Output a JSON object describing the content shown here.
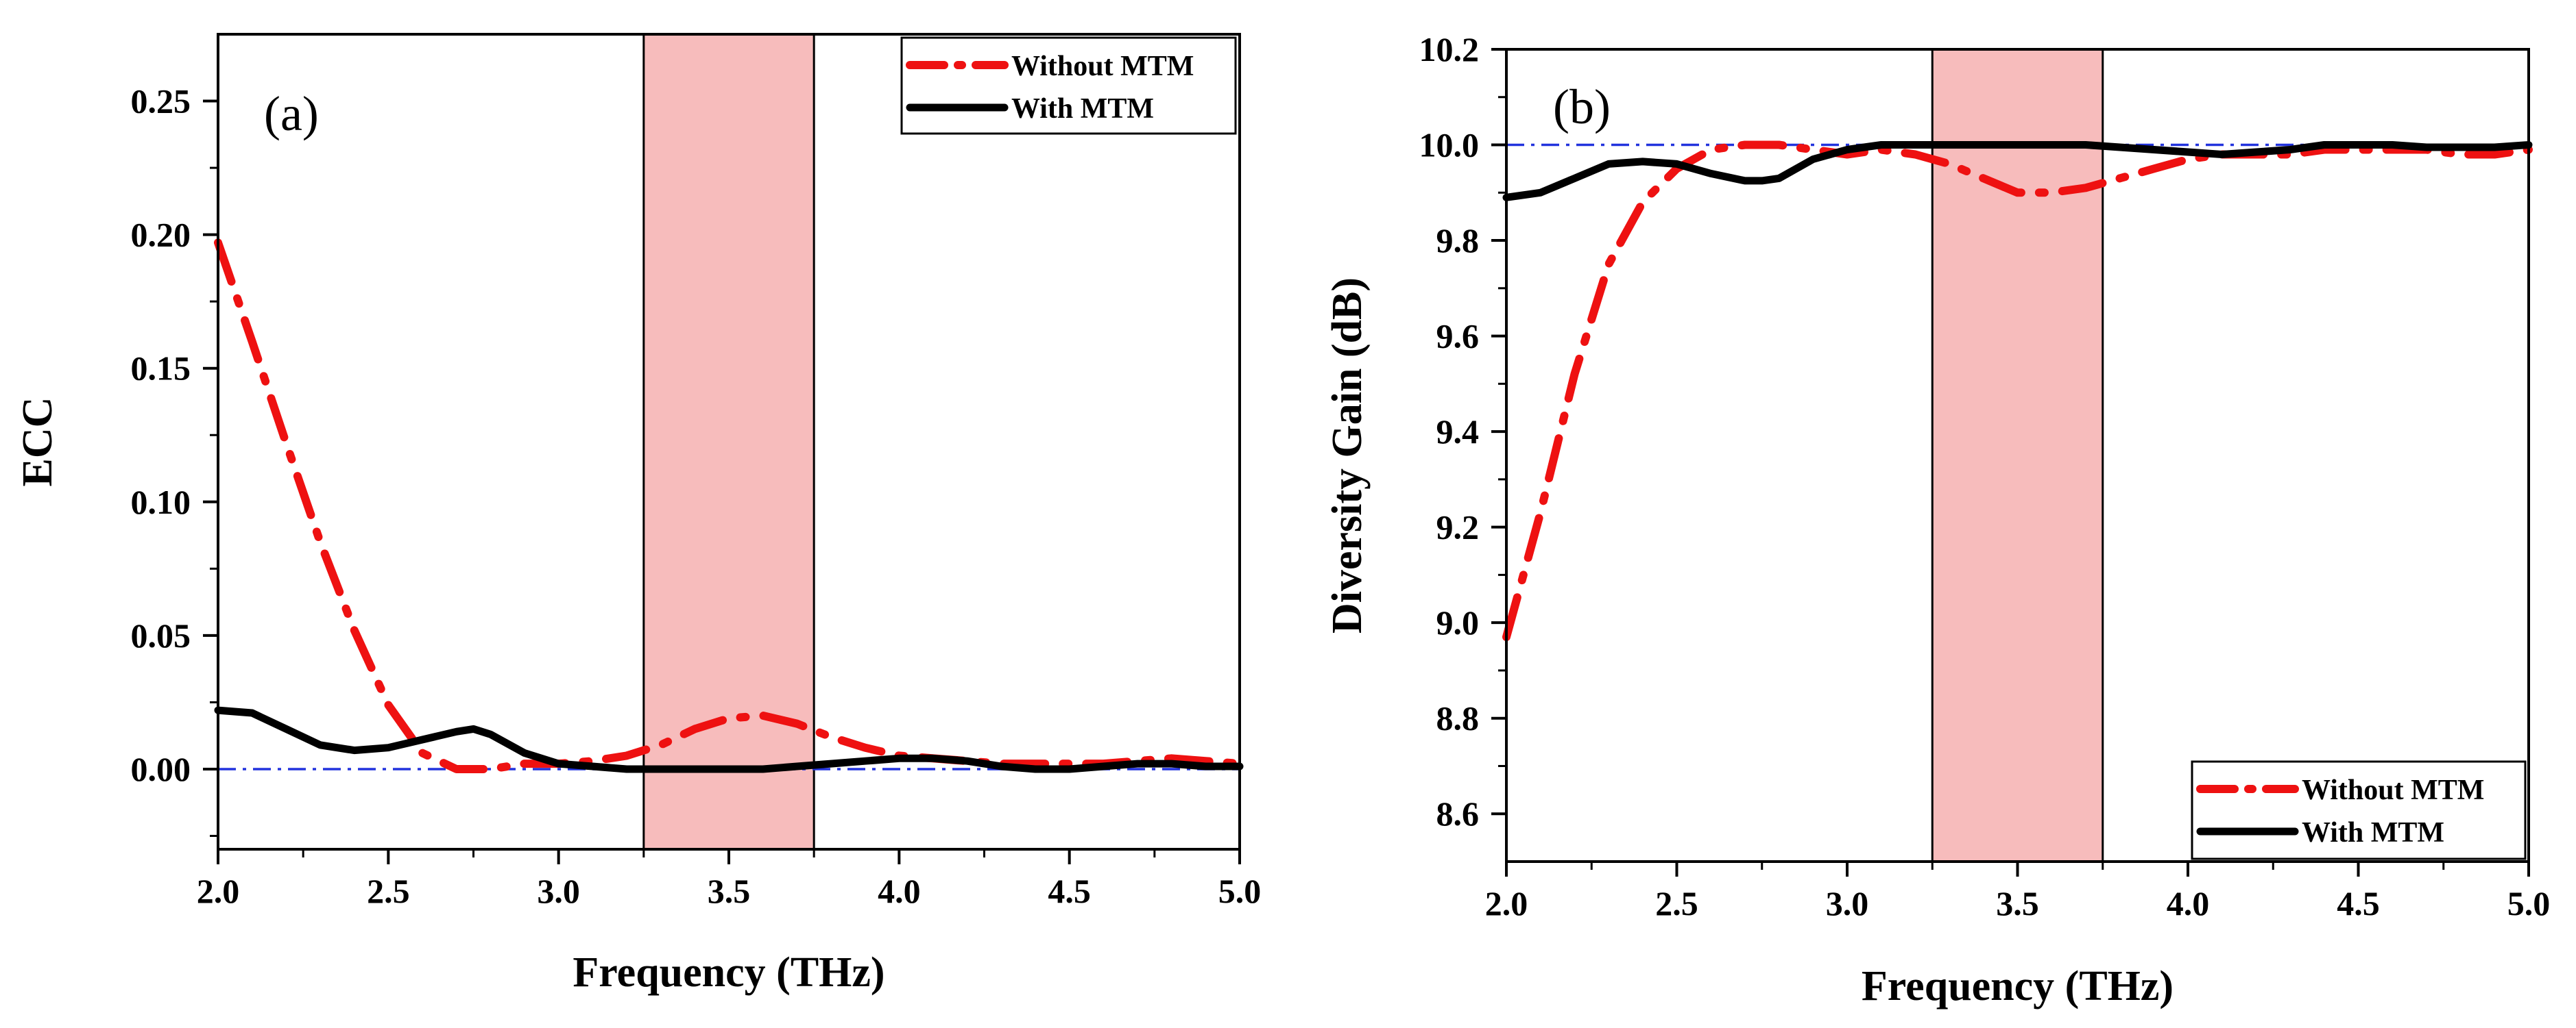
{
  "chart_data": [
    {
      "type": "line",
      "panel_label": "(a)",
      "xlabel": "Frequency (THz)",
      "ylabel": "ECC",
      "xlim": [
        2.0,
        5.0
      ],
      "ylim": [
        -0.03,
        0.275
      ],
      "xticks": [
        2.0,
        2.5,
        3.0,
        3.5,
        4.0,
        4.5,
        5.0
      ],
      "yticks": [
        0.0,
        0.05,
        0.1,
        0.15,
        0.2,
        0.25
      ],
      "x_tick_labels": [
        "2.0",
        "2.5",
        "3.0",
        "3.5",
        "4.0",
        "4.5",
        "5.0"
      ],
      "y_tick_labels": [
        "0.00",
        "0.05",
        "0.10",
        "0.15",
        "0.20",
        "0.25"
      ],
      "highlight_band": [
        3.25,
        3.75
      ],
      "reference_line": 0.0,
      "legend_position": "top-right",
      "series": [
        {
          "name": "Without MTM",
          "color": "#ee1111",
          "style": "dash-dot",
          "x": [
            2.0,
            2.1,
            2.2,
            2.3,
            2.4,
            2.5,
            2.6,
            2.7,
            2.8,
            2.9,
            3.0,
            3.1,
            3.2,
            3.3,
            3.4,
            3.5,
            3.6,
            3.7,
            3.8,
            3.9,
            4.0,
            4.1,
            4.2,
            4.3,
            4.4,
            4.5,
            4.6,
            4.7,
            4.8,
            4.9,
            5.0
          ],
          "values": [
            0.197,
            0.16,
            0.122,
            0.085,
            0.052,
            0.024,
            0.006,
            0.0,
            0.0,
            0.002,
            0.002,
            0.003,
            0.005,
            0.009,
            0.015,
            0.019,
            0.02,
            0.017,
            0.012,
            0.008,
            0.005,
            0.004,
            0.003,
            0.002,
            0.002,
            0.002,
            0.002,
            0.003,
            0.004,
            0.003,
            0.002
          ]
        },
        {
          "name": "With MTM",
          "color": "#000000",
          "style": "solid",
          "x": [
            2.0,
            2.1,
            2.2,
            2.3,
            2.4,
            2.5,
            2.6,
            2.7,
            2.75,
            2.8,
            2.9,
            3.0,
            3.1,
            3.2,
            3.3,
            3.4,
            3.5,
            3.6,
            3.7,
            3.8,
            3.9,
            4.0,
            4.1,
            4.2,
            4.3,
            4.4,
            4.5,
            4.6,
            4.7,
            4.8,
            4.9,
            5.0
          ],
          "values": [
            0.022,
            0.021,
            0.015,
            0.009,
            0.007,
            0.008,
            0.011,
            0.014,
            0.015,
            0.013,
            0.006,
            0.002,
            0.001,
            0.0,
            0.0,
            0.0,
            0.0,
            0.0,
            0.001,
            0.002,
            0.003,
            0.004,
            0.004,
            0.003,
            0.001,
            0.0,
            0.0,
            0.001,
            0.002,
            0.002,
            0.001,
            0.001
          ]
        }
      ]
    },
    {
      "type": "line",
      "panel_label": "(b)",
      "xlabel": "Frequency (THz)",
      "ylabel": "Diversity Gain (dB)",
      "xlim": [
        2.0,
        5.0
      ],
      "ylim": [
        8.5,
        10.2
      ],
      "xticks": [
        2.0,
        2.5,
        3.0,
        3.5,
        4.0,
        4.5,
        5.0
      ],
      "yticks": [
        8.6,
        8.8,
        9.0,
        9.2,
        9.4,
        9.6,
        9.8,
        10.0,
        10.2
      ],
      "x_tick_labels": [
        "2.0",
        "2.5",
        "3.0",
        "3.5",
        "4.0",
        "4.5",
        "5.0"
      ],
      "y_tick_labels": [
        "8.6",
        "8.8",
        "9.0",
        "9.2",
        "9.4",
        "9.6",
        "9.8",
        "10.0",
        "10.2"
      ],
      "highlight_band": [
        3.25,
        3.75
      ],
      "reference_line": 10.0,
      "legend_position": "bottom-right",
      "series": [
        {
          "name": "Without MTM",
          "color": "#ee1111",
          "style": "dash-dot",
          "x": [
            2.0,
            2.1,
            2.2,
            2.3,
            2.4,
            2.5,
            2.6,
            2.7,
            2.8,
            2.9,
            3.0,
            3.1,
            3.2,
            3.3,
            3.4,
            3.5,
            3.6,
            3.7,
            3.8,
            3.9,
            4.0,
            4.1,
            4.2,
            4.3,
            4.4,
            4.5,
            4.6,
            4.7,
            4.8,
            4.9,
            5.0
          ],
          "values": [
            8.97,
            9.23,
            9.52,
            9.75,
            9.88,
            9.95,
            9.99,
            10.0,
            10.0,
            9.99,
            9.98,
            9.99,
            9.98,
            9.96,
            9.93,
            9.9,
            9.9,
            9.91,
            9.93,
            9.95,
            9.97,
            9.98,
            9.98,
            9.98,
            9.99,
            9.99,
            9.99,
            9.99,
            9.98,
            9.98,
            9.99
          ]
        },
        {
          "name": "With MTM",
          "color": "#000000",
          "style": "solid",
          "x": [
            2.0,
            2.1,
            2.2,
            2.3,
            2.4,
            2.5,
            2.6,
            2.7,
            2.75,
            2.8,
            2.9,
            3.0,
            3.1,
            3.2,
            3.3,
            3.4,
            3.5,
            3.6,
            3.7,
            3.8,
            3.9,
            4.0,
            4.1,
            4.2,
            4.3,
            4.4,
            4.5,
            4.6,
            4.7,
            4.8,
            4.9,
            5.0
          ],
          "values": [
            9.89,
            9.9,
            9.93,
            9.96,
            9.965,
            9.96,
            9.94,
            9.925,
            9.925,
            9.93,
            9.97,
            9.99,
            10.0,
            10.0,
            10.0,
            10.0,
            10.0,
            10.0,
            10.0,
            9.995,
            9.99,
            9.985,
            9.98,
            9.985,
            9.99,
            10.0,
            10.0,
            10.0,
            9.995,
            9.995,
            9.995,
            10.0
          ]
        }
      ]
    }
  ]
}
